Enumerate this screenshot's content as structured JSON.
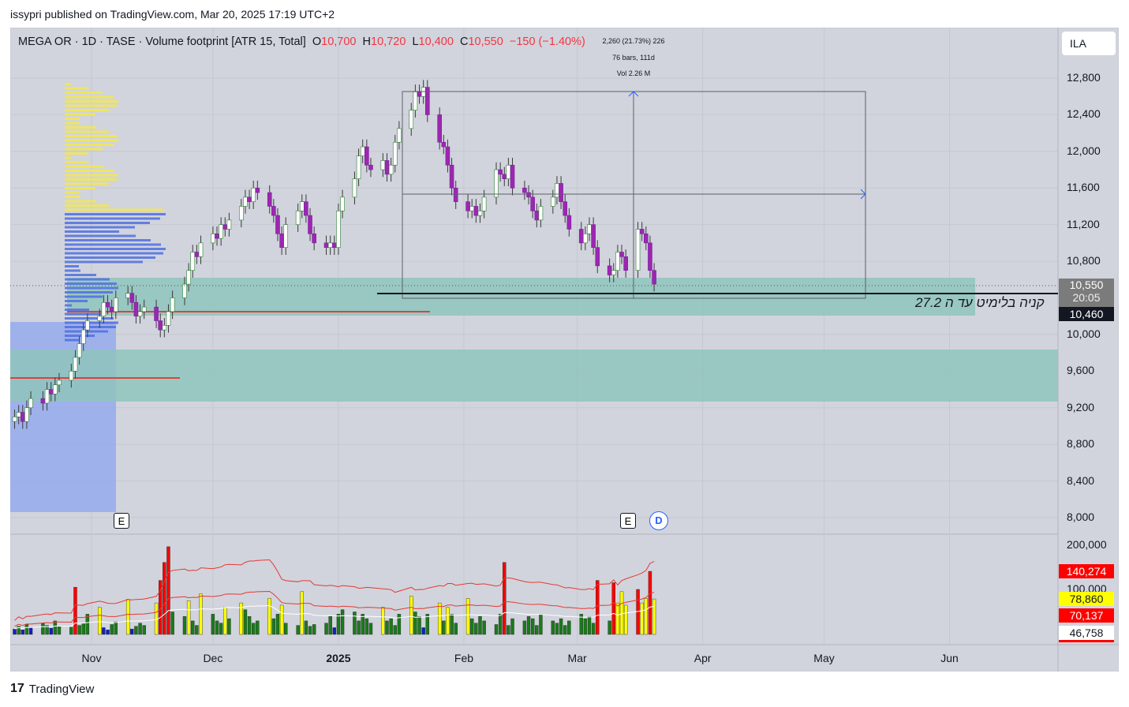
{
  "publish_line": "issypri published on TradingView.com, Mar 20, 2025 17:19 UTC+2",
  "legend": {
    "symbol": "MEGA OR · 1D · TASE · Volume footprint [ATR 15, Total]",
    "o_label": "O",
    "o": "10,700",
    "h_label": "H",
    "h": "10,720",
    "l_label": "L",
    "l": "10,400",
    "c_label": "C",
    "c": "10,550",
    "change": "−150 (−1.40%)"
  },
  "measure": {
    "range": "2,260 (21.73%) 226",
    "bars": "76 bars, 111d",
    "vol": "Vol 2.26 M"
  },
  "currency_button": "ILA",
  "annotation": "קניה בלימיט עד ה 27.2",
  "price_tags": {
    "last": "10,550",
    "countdown": "20:05",
    "line": "10,460"
  },
  "volume_tags": [
    "140,274",
    "78,860",
    "70,137",
    "46,758"
  ],
  "markers": {
    "earnings1": "E",
    "earnings2": "E",
    "dividend": "D"
  },
  "footer_brand": "TradingView",
  "colors": {
    "up": "#ffffff",
    "down": "#9c27b0",
    "zone": "#8fc4bd",
    "box": "#8ea6ef",
    "vol_green": "#1b7a1b",
    "vol_red": "#ff0000",
    "vol_yellow": "#ffff00",
    "vol_blue": "#1020c0"
  },
  "chart_data": {
    "type": "candlestick",
    "title": "MEGA OR · 1D · TASE",
    "start_date": "2024-10-13",
    "trading_days": "Sun-Thu",
    "price_axis": {
      "ticks": [
        "12,800",
        "12,400",
        "12,000",
        "11,600",
        "11,200",
        "10,800",
        "10,000",
        "9,600",
        "9,200",
        "8,800",
        "8,400",
        "8,000"
      ],
      "tick_values": [
        12800,
        12400,
        12000,
        11600,
        11200,
        10800,
        10000,
        9600,
        9200,
        8800,
        8400,
        8000
      ],
      "range": [
        7800,
        13100
      ]
    },
    "volume_axis": {
      "ticks": [
        "200,000",
        "100,000"
      ],
      "tick_values": [
        200000,
        100000
      ]
    },
    "time_axis": [
      {
        "label": "Nov",
        "date": "2024-11-01"
      },
      {
        "label": "Dec",
        "date": "2024-12-01"
      },
      {
        "label": "2025",
        "date": "2025-01-01",
        "bold": true
      },
      {
        "label": "Feb",
        "date": "2025-02-01"
      },
      {
        "label": "Mar",
        "date": "2025-03-01"
      },
      {
        "label": "Apr",
        "date": "2025-04-01"
      },
      {
        "label": "May",
        "date": "2025-05-01"
      },
      {
        "label": "Jun",
        "date": "2025-06-01"
      }
    ],
    "closes": [
      9100,
      9150,
      9050,
      9200,
      9300,
      9250,
      9400,
      9350,
      9450,
      9500,
      9600,
      9750,
      9900,
      10050,
      10150,
      10200,
      10350,
      10300,
      10250,
      10400,
      10450,
      10350,
      10200,
      10250,
      10300,
      10150,
      10050,
      10100,
      10250,
      10400,
      10550,
      10700,
      10900,
      10850,
      11000,
      11100,
      11050,
      11200,
      11150,
      11250,
      11400,
      11500,
      11450,
      11600,
      11550,
      11400,
      11300,
      11100,
      10950,
      11200,
      11350,
      11450,
      11300,
      11100,
      11000,
      10950,
      11000,
      10950,
      11350,
      11500,
      11700,
      11950,
      12050,
      11850,
      11800,
      11900,
      11750,
      11850,
      12100,
      12250,
      12450,
      12650,
      12600,
      12700,
      12400,
      12100,
      12050,
      11850,
      11600,
      11450,
      11350,
      11400,
      11300,
      11350,
      11500,
      11800,
      11750,
      11700,
      11850,
      11600,
      11550,
      11500,
      11350,
      11250,
      11400,
      11500,
      11650,
      11450,
      11300,
      11150,
      11000,
      11100,
      11200,
      10950,
      10750,
      10650,
      10700,
      10900,
      10850,
      10700,
      11150,
      11100,
      11000,
      10700,
      10550
    ],
    "volumes": [
      12000,
      18000,
      10000,
      22000,
      15000,
      25000,
      20000,
      14000,
      30000,
      18000,
      16000,
      105000,
      20000,
      25000,
      45000,
      60000,
      15000,
      10000,
      22000,
      28000,
      78000,
      12000,
      18000,
      25000,
      20000,
      70000,
      120000,
      160000,
      195000,
      50000,
      40000,
      75000,
      30000,
      20000,
      90000,
      45000,
      30000,
      25000,
      60000,
      35000,
      70000,
      55000,
      40000,
      25000,
      30000,
      80000,
      35000,
      45000,
      65000,
      25000,
      20000,
      95000,
      30000,
      18000,
      22000,
      25000,
      40000,
      15000,
      45000,
      55000,
      50000,
      30000,
      45000,
      35000,
      25000,
      60000,
      30000,
      35000,
      20000,
      45000,
      85000,
      50000,
      40000,
      15000,
      45000,
      70000,
      30000,
      60000,
      45000,
      25000,
      80000,
      35000,
      25000,
      40000,
      30000,
      22000,
      45000,
      160000,
      20000,
      35000,
      30000,
      40000,
      35000,
      20000,
      45000,
      30000,
      25000,
      35000,
      20000,
      30000,
      45000,
      35000,
      40000,
      25000,
      120000,
      30000,
      115000,
      70000,
      95000,
      65000,
      100000,
      70000,
      80000,
      140274,
      78860
    ]
  }
}
